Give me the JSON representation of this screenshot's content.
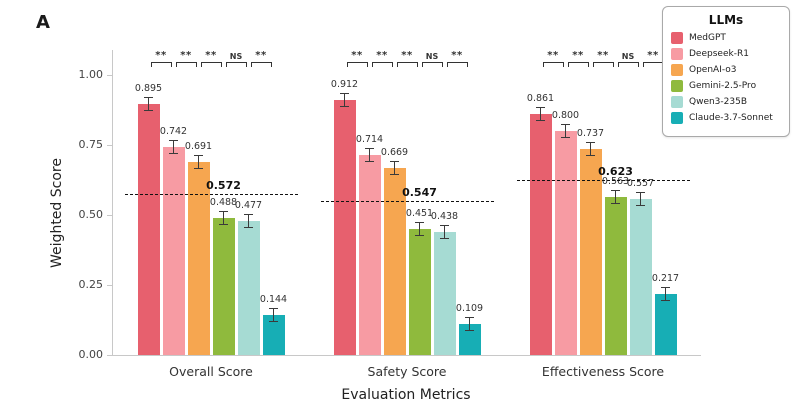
{
  "panel_label": "A",
  "legend": {
    "title": "LLMs"
  },
  "chart_data": {
    "type": "bar",
    "title": "",
    "xlabel": "Evaluation Metrics",
    "ylabel": "Weighted Score",
    "ylim": [
      0,
      1.0
    ],
    "grid": false,
    "legend_position": "top-right",
    "yticks": [
      {
        "label": "0.00",
        "value": 0.0
      },
      {
        "label": "0.25",
        "value": 0.25
      },
      {
        "label": "0.50",
        "value": 0.5
      },
      {
        "label": "0.75",
        "value": 0.75
      },
      {
        "label": "1.00",
        "value": 1.0
      }
    ],
    "categories": [
      "Overall Score",
      "Safety Score",
      "Effectiveness Score"
    ],
    "series": [
      {
        "name": "MedGPT",
        "color": "#e7606e",
        "values": [
          0.895,
          0.912,
          0.861
        ]
      },
      {
        "name": "Deepseek-R1",
        "color": "#f79ba3",
        "values": [
          0.742,
          0.714,
          0.8
        ]
      },
      {
        "name": "OpenAI-o3",
        "color": "#f6a650",
        "values": [
          0.691,
          0.669,
          0.737
        ]
      },
      {
        "name": "Gemini-2.5-Pro",
        "color": "#8fba3d",
        "values": [
          0.488,
          0.451,
          0.563
        ]
      },
      {
        "name": "Qwen3-235B",
        "color": "#a6dbd3",
        "values": [
          0.477,
          0.438,
          0.557
        ]
      },
      {
        "name": "Claude-3.7-Sonnet",
        "color": "#17aeb5",
        "values": [
          0.144,
          0.109,
          0.217
        ]
      }
    ],
    "error_bar_halfwidth": 0.025,
    "mean_lines": [
      0.572,
      0.547,
      0.623
    ],
    "significance": [
      [
        "**",
        "**",
        "**",
        "NS",
        "**"
      ],
      [
        "**",
        "**",
        "**",
        "NS",
        "**"
      ],
      [
        "**",
        "**",
        "**",
        "NS",
        "**"
      ]
    ]
  }
}
